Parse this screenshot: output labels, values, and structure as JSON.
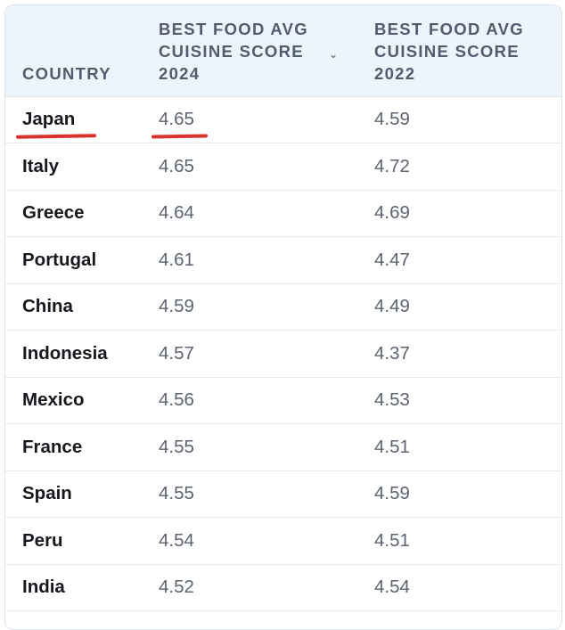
{
  "table": {
    "headers": {
      "country": "COUNTRY",
      "score_2024": [
        "BEST FOOD AVG",
        "CUISINE SCORE",
        "2024"
      ],
      "score_2022": [
        "BEST FOOD AVG",
        "CUISINE SCORE",
        "2022"
      ],
      "sort_icon": "chevron-down-icon"
    },
    "rows": [
      {
        "country": "Japan",
        "score_2024": "4.65",
        "score_2022": "4.59"
      },
      {
        "country": "Italy",
        "score_2024": "4.65",
        "score_2022": "4.72"
      },
      {
        "country": "Greece",
        "score_2024": "4.64",
        "score_2022": "4.69"
      },
      {
        "country": "Portugal",
        "score_2024": "4.61",
        "score_2022": "4.47"
      },
      {
        "country": "China",
        "score_2024": "4.59",
        "score_2022": "4.49"
      },
      {
        "country": "Indonesia",
        "score_2024": "4.57",
        "score_2022": "4.37"
      },
      {
        "country": "Mexico",
        "score_2024": "4.56",
        "score_2022": "4.53"
      },
      {
        "country": "France",
        "score_2024": "4.55",
        "score_2022": "4.51"
      },
      {
        "country": "Spain",
        "score_2024": "4.55",
        "score_2022": "4.59"
      },
      {
        "country": "Peru",
        "score_2024": "4.54",
        "score_2022": "4.51"
      },
      {
        "country": "India",
        "score_2024": "4.52",
        "score_2022": "4.54"
      }
    ]
  },
  "annotations": {
    "underline_color": "#d9322c"
  },
  "colors": {
    "header_bg": "#eef4fb",
    "header_text": "#4f5d6e",
    "country_text": "#15181c",
    "score_text": "#5c6470",
    "border": "#dfe4ea"
  }
}
